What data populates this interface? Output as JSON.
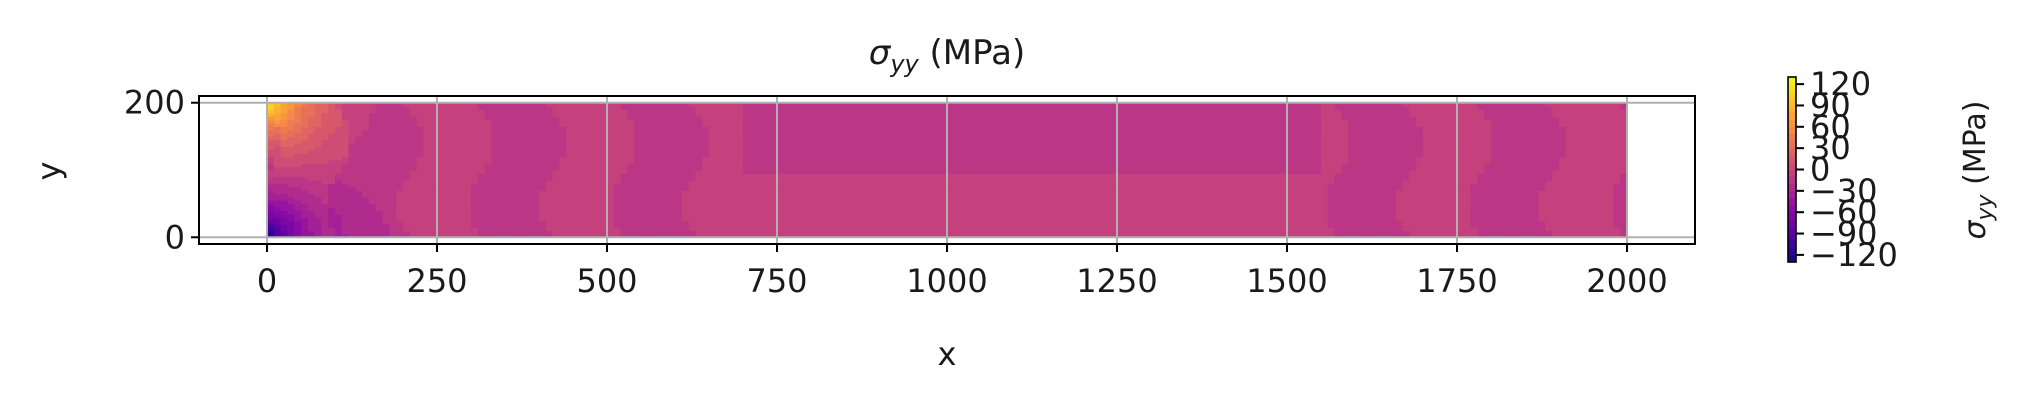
{
  "chart_data": {
    "type": "heatmap",
    "title": "σyy (MPa)",
    "title_parts": {
      "sigma": "σ",
      "subscript": "yy",
      "suffix": " (MPa)"
    },
    "xlabel": "x",
    "ylabel": "y",
    "xlim": [
      -100,
      2100
    ],
    "ylim": [
      -10,
      210
    ],
    "xticks": [
      0,
      250,
      500,
      750,
      1000,
      1250,
      1500,
      1750,
      2000
    ],
    "xtick_labels": [
      "0",
      "250",
      "500",
      "750",
      "1000",
      "1250",
      "1500",
      "1750",
      "2000"
    ],
    "yticks": [
      0,
      200
    ],
    "ytick_labels": [
      "0",
      "200"
    ],
    "grid": true,
    "colormap": "plasma",
    "domain": {
      "x": [
        0,
        2000
      ],
      "y": [
        0,
        200
      ]
    },
    "field_description": "Stress concentration at left edge: high positive (~120) at top-left corner, high negative (~-120) at bottom-left corner; elsewhere values fluctuate near 0 to -20 in vertical bands.",
    "colorbar": {
      "label": "σyy (MPa)",
      "label_parts": {
        "sigma": "σ",
        "subscript": "yy",
        "suffix": " (MPa)"
      },
      "range": [
        -130,
        130
      ],
      "ticks": [
        120,
        90,
        60,
        30,
        0,
        -30,
        -60,
        -90,
        -120
      ],
      "tick_labels": [
        "120",
        "90",
        "60",
        "30",
        "0",
        "−30",
        "−60",
        "−90",
        "−120"
      ]
    }
  }
}
